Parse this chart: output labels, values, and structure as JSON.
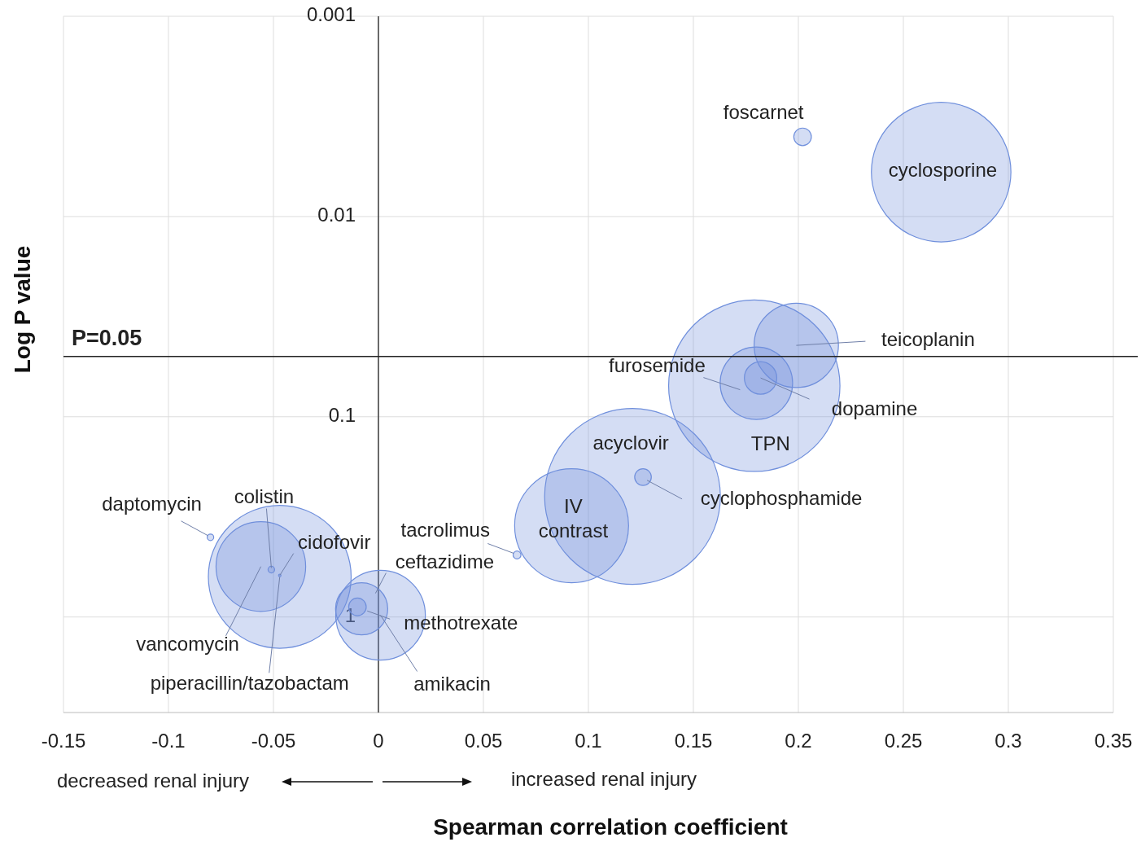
{
  "chart_data": {
    "type": "bubble",
    "xlabel": "Spearman correlation coefficient",
    "ylabel": "Log P value",
    "x": [
      0.202,
      0.268,
      0.199,
      0.179,
      0.18,
      0.182,
      0.121,
      0.126,
      0.092,
      0.066,
      -0.008,
      -0.01,
      0.001,
      -0.051,
      -0.047,
      -0.08,
      -0.056,
      -0.047
    ],
    "values": [
      0.004,
      0.006,
      0.044,
      0.07,
      0.068,
      0.064,
      0.25,
      0.2,
      0.35,
      0.49,
      0.91,
      0.89,
      0.98,
      0.58,
      0.62,
      0.4,
      0.56,
      0.63
    ],
    "sizes": [
      0.01,
      0.63,
      0.23,
      0.95,
      0.17,
      0.034,
      1,
      0.009,
      0.42,
      0.002,
      0.088,
      0.01,
      0.26,
      0.0014,
      0.0002,
      0.0014,
      0.26,
      0.66
    ],
    "color": "#6f8fdc",
    "xlim": [
      -0.15,
      0.35
    ],
    "xticks": [
      -0.15,
      -0.1,
      -0.05,
      0,
      0.05,
      0.1,
      0.15,
      0.2,
      0.25,
      0.3,
      0.35
    ],
    "ylim": [
      3,
      0.001
    ],
    "yticks": [
      0.001,
      0.01,
      0.1,
      1
    ],
    "log": "y",
    "grid": true,
    "ref_lines": [
      {
        "axis": "y",
        "value": 0.05,
        "label": "P=0.05",
        "color": "#222222"
      }
    ],
    "annotations": [
      {
        "text": "foscarnet",
        "x": 0.202,
        "y": 0.004
      },
      {
        "text": "cyclosporine",
        "x": 0.268,
        "y": 0.006
      },
      {
        "text": "teicoplanin",
        "x": 0.199,
        "y": 0.044
      },
      {
        "text": "TPN",
        "x": 0.179,
        "y": 0.07
      },
      {
        "text": "furosemide",
        "x": 0.18,
        "y": 0.068
      },
      {
        "text": "dopamine",
        "x": 0.182,
        "y": 0.064
      },
      {
        "text": "acyclovir",
        "x": 0.121,
        "y": 0.25
      },
      {
        "text": "cyclophosphamide",
        "x": 0.126,
        "y": 0.2
      },
      {
        "text": "IV contrast",
        "x": 0.092,
        "y": 0.35
      },
      {
        "text": "tacrolimus",
        "x": 0.066,
        "y": 0.49
      },
      {
        "text": "ceftazidime",
        "x": -0.008,
        "y": 0.91
      },
      {
        "text": "methotrexate",
        "x": -0.01,
        "y": 0.89
      },
      {
        "text": "amikacin",
        "x": 0.001,
        "y": 0.98
      },
      {
        "text": "colistin",
        "x": -0.051,
        "y": 0.58
      },
      {
        "text": "cidofovir",
        "x": -0.047,
        "y": 0.62
      },
      {
        "text": "daptomycin",
        "x": -0.08,
        "y": 0.4
      },
      {
        "text": "vancomycin",
        "x": -0.056,
        "y": 0.56
      },
      {
        "text": "piperacillin/tazobactam",
        "x": -0.047,
        "y": 0.63
      },
      "decreased renal injury",
      "increased renal injury"
    ]
  }
}
